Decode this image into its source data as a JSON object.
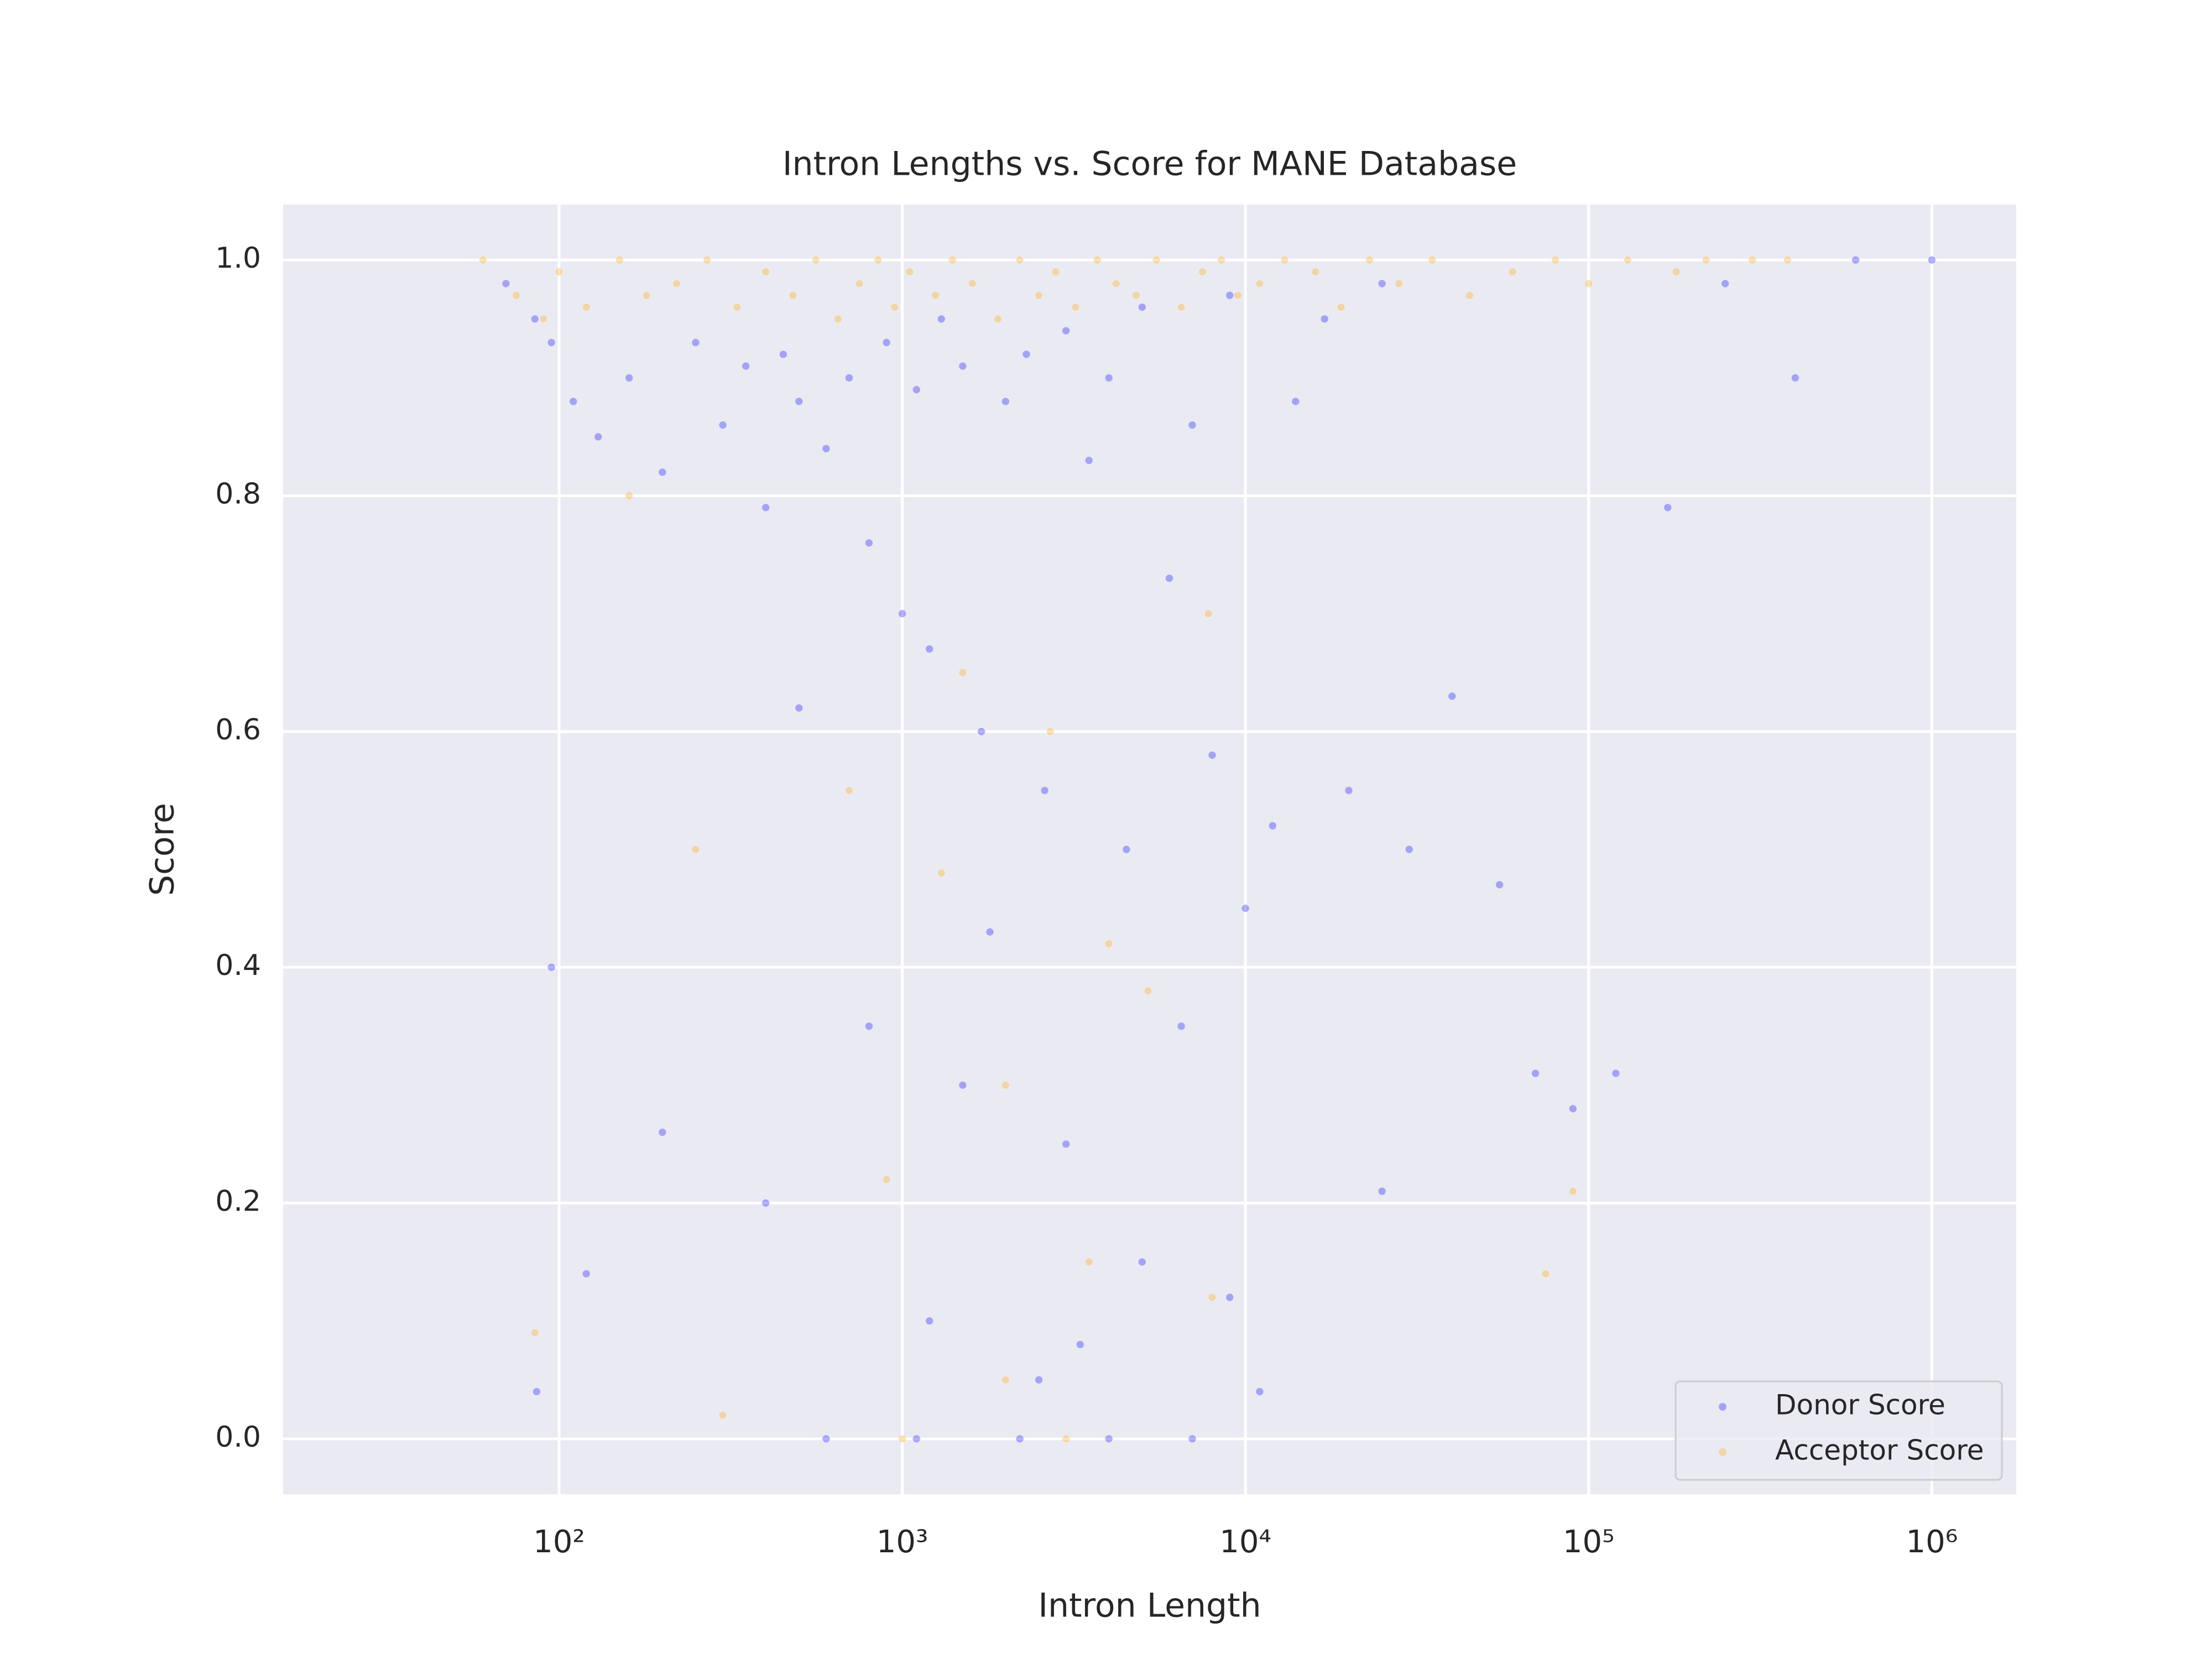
{
  "chart_data": {
    "type": "scatter",
    "title": "Intron Lengths vs. Score for MANE Database",
    "xlabel": "Intron Length",
    "ylabel": "Score",
    "xscale": "log",
    "grid": true,
    "legend": "lower right",
    "xlim": [
      15.7,
      1762000
    ],
    "ylim": [
      -0.047,
      1.047
    ],
    "xticks": [
      {
        "value": 100,
        "label": "10²"
      },
      {
        "value": 1000,
        "label": "10³"
      },
      {
        "value": 10000,
        "label": "10⁴"
      },
      {
        "value": 100000,
        "label": "10⁵"
      },
      {
        "value": 1000000,
        "label": "10⁶"
      }
    ],
    "yticks": [
      {
        "value": 0,
        "label": "0.0"
      },
      0.2,
      0.4,
      0.6,
      0.8,
      {
        "value": 1,
        "label": "1.0"
      }
    ],
    "series": [
      {
        "name": "Donor Score",
        "color": "#0000ff",
        "x": [
          70,
          85,
          95,
          110,
          130,
          160,
          200,
          250,
          300,
          350,
          400,
          450,
          500,
          600,
          700,
          800,
          900,
          1000,
          1100,
          1200,
          1300,
          1500,
          1700,
          2000,
          2300,
          2600,
          3000,
          3500,
          4000,
          4500,
          5000,
          6000,
          7000,
          8000,
          9000,
          10000,
          12000,
          14000,
          17000,
          20000,
          25000,
          30000,
          40000,
          55000,
          70000,
          90000,
          120000,
          170000,
          250000,
          400000,
          600000,
          1000000,
          800,
          1500,
          3000,
          5000,
          1200,
          2500,
          400,
          9000,
          86,
          120,
          200,
          600,
          1100,
          2200,
          4000,
          7000,
          11000,
          25000,
          95,
          500,
          1800,
          3300,
          6500
        ],
        "values": [
          0.98,
          0.95,
          0.93,
          0.88,
          0.85,
          0.9,
          0.82,
          0.93,
          0.86,
          0.91,
          0.79,
          0.92,
          0.88,
          0.84,
          0.9,
          0.76,
          0.93,
          0.7,
          0.89,
          0.67,
          0.95,
          0.91,
          0.6,
          0.88,
          0.92,
          0.55,
          0.94,
          0.83,
          0.9,
          0.5,
          0.96,
          0.73,
          0.86,
          0.58,
          0.97,
          0.45,
          0.52,
          0.88,
          0.95,
          0.55,
          0.98,
          0.5,
          0.63,
          0.47,
          0.31,
          0.28,
          0.31,
          0.79,
          0.98,
          0.9,
          1.0,
          1.0,
          0.35,
          0.3,
          0.25,
          0.15,
          0.1,
          0.05,
          0.2,
          0.12,
          0.04,
          0.14,
          0.26,
          0.0,
          0.0,
          0.0,
          0.0,
          0.0,
          0.04,
          0.21,
          0.4,
          0.62,
          0.43,
          0.08,
          0.35
        ]
      },
      {
        "name": "Acceptor Score",
        "color": "#ffa500",
        "x": [
          60,
          75,
          90,
          100,
          120,
          150,
          180,
          220,
          270,
          330,
          400,
          480,
          560,
          650,
          750,
          850,
          950,
          1050,
          1250,
          1400,
          1600,
          1900,
          2200,
          2500,
          2800,
          3200,
          3700,
          4200,
          4800,
          5500,
          6500,
          7500,
          8500,
          9500,
          11000,
          13000,
          16000,
          19000,
          23000,
          28000,
          35000,
          45000,
          60000,
          80000,
          100000,
          130000,
          180000,
          220000,
          300000,
          380000,
          700,
          1300,
          2700,
          5200,
          900,
          2000,
          3500,
          7800,
          250,
          160,
          85,
          300,
          1000,
          2000,
          3000,
          8000,
          90000,
          75000,
          1500,
          4000
        ],
        "values": [
          1.0,
          0.97,
          0.95,
          0.99,
          0.96,
          1.0,
          0.97,
          0.98,
          1.0,
          0.96,
          0.99,
          0.97,
          1.0,
          0.95,
          0.98,
          1.0,
          0.96,
          0.99,
          0.97,
          1.0,
          0.98,
          0.95,
          1.0,
          0.97,
          0.99,
          0.96,
          1.0,
          0.98,
          0.97,
          1.0,
          0.96,
          0.99,
          1.0,
          0.97,
          0.98,
          1.0,
          0.99,
          0.96,
          1.0,
          0.98,
          1.0,
          0.97,
          0.99,
          1.0,
          0.98,
          1.0,
          0.99,
          1.0,
          1.0,
          1.0,
          0.55,
          0.48,
          0.6,
          0.38,
          0.22,
          0.3,
          0.15,
          0.7,
          0.5,
          0.8,
          0.09,
          0.02,
          0.0,
          0.05,
          0.0,
          0.12,
          0.21,
          0.14,
          0.65,
          0.42
        ]
      }
    ]
  }
}
